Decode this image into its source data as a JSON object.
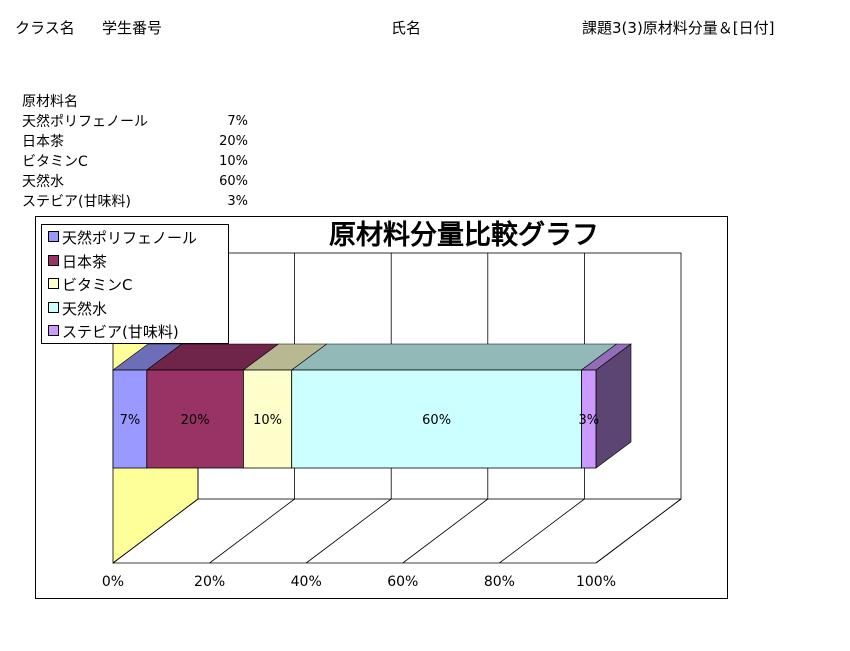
{
  "header": {
    "class_label": "クラス名",
    "student_label": "学生番号",
    "name_label": "氏名",
    "task_label": "課題3(3)原材料分量＆[日付]"
  },
  "table": {
    "header": "原材料名",
    "rows": [
      {
        "name": "天然ポリフェノール",
        "value": "7%"
      },
      {
        "name": "日本茶",
        "value": "20%"
      },
      {
        "name": "ビタミンC",
        "value": "10%"
      },
      {
        "name": "天然水",
        "value": "60%"
      },
      {
        "name": "ステビア(甘味料)",
        "value": "3%"
      }
    ]
  },
  "chart_data": {
    "type": "bar",
    "orientation": "horizontal",
    "stacked": "100%",
    "style": "3d",
    "title": "原材料分量比較グラフ",
    "xlim": [
      0,
      100
    ],
    "x_ticks": [
      "0%",
      "20%",
      "40%",
      "60%",
      "80%",
      "100%"
    ],
    "grid": true,
    "legend_position": "top-left",
    "series": [
      {
        "name": "天然ポリフェノール",
        "value": 7,
        "label": "7%",
        "color": "#9999ff"
      },
      {
        "name": "日本茶",
        "value": 20,
        "label": "20%",
        "color": "#993366"
      },
      {
        "name": "ビタミンC",
        "value": 10,
        "label": "10%",
        "color": "#ffffcc"
      },
      {
        "name": "天然水",
        "value": 60,
        "label": "60%",
        "color": "#ccffff"
      },
      {
        "name": "ステビア(甘味料)",
        "value": 3,
        "label": "3%",
        "color": "#cc99ff"
      }
    ],
    "wall_color": "#ffff99"
  }
}
